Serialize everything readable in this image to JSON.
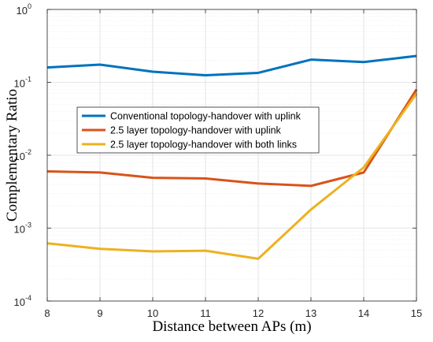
{
  "chart_data": {
    "type": "line",
    "title": "",
    "xlabel": "Distance between APs (m)",
    "ylabel": "Complementary Ratio",
    "y_scale": "log",
    "xlim": [
      8,
      15
    ],
    "ylim": [
      0.0001,
      1
    ],
    "grid": true,
    "legend_position": "center-left",
    "x": [
      8,
      9,
      10,
      11,
      12,
      13,
      14,
      15
    ],
    "x_tick_labels": [
      "8",
      "9",
      "10",
      "11",
      "12",
      "13",
      "14",
      "15"
    ],
    "y_tick_labels": [
      {
        "base": "10",
        "exp": "-4",
        "value": 0.0001
      },
      {
        "base": "10",
        "exp": "-3",
        "value": 0.001
      },
      {
        "base": "10",
        "exp": "-2",
        "value": 0.01
      },
      {
        "base": "10",
        "exp": "-1",
        "value": 0.1
      },
      {
        "base": "10",
        "exp": "0",
        "value": 1
      }
    ],
    "series": [
      {
        "name": "Conventional topology-handover with uplink",
        "color": "#0072BD",
        "values": [
          0.16,
          0.175,
          0.14,
          0.125,
          0.135,
          0.205,
          0.19,
          0.23
        ]
      },
      {
        "name": "2.5 layer topology-handover with uplink",
        "color": "#D95319",
        "values": [
          0.006,
          0.0058,
          0.0049,
          0.0048,
          0.0041,
          0.0038,
          0.0058,
          0.08
        ]
      },
      {
        "name": "2.5 layer topology-handover with both links",
        "color": "#EDB120",
        "values": [
          0.00062,
          0.00052,
          0.00048,
          0.00049,
          0.00038,
          0.0018,
          0.0068,
          0.07
        ]
      }
    ]
  }
}
